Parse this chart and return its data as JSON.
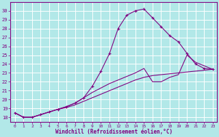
{
  "xlabel": "Windchill (Refroidissement éolien,°C)",
  "background_color": "#b2e8e8",
  "line_color": "#800080",
  "grid_color": "#ffffff",
  "ylim": [
    17.5,
    31.0
  ],
  "xlim": [
    -0.5,
    23.5
  ],
  "yticks": [
    18,
    19,
    20,
    21,
    22,
    23,
    24,
    25,
    26,
    27,
    28,
    29,
    30
  ],
  "xticks": [
    0,
    1,
    2,
    3,
    4,
    5,
    6,
    7,
    8,
    9,
    10,
    11,
    12,
    13,
    14,
    15,
    16,
    17,
    18,
    19,
    20,
    21,
    22,
    23
  ],
  "series": [
    {
      "x": [
        0,
        1,
        2,
        3,
        4,
        5,
        6,
        7,
        8,
        9,
        10,
        11,
        12,
        13,
        14,
        15,
        16,
        17,
        18,
        19,
        20,
        21,
        22,
        23
      ],
      "y": [
        18.5,
        18.0,
        18.0,
        18.3,
        18.6,
        18.9,
        19.2,
        19.6,
        20.2,
        21.5,
        23.2,
        25.2,
        28.0,
        29.5,
        30.0,
        30.2,
        29.2,
        28.2,
        27.2,
        26.5,
        25.2,
        24.0,
        23.5,
        23.4
      ],
      "marker": "+"
    },
    {
      "x": [
        0,
        1,
        2,
        3,
        4,
        5,
        6,
        7,
        8,
        9,
        10,
        11,
        12,
        13,
        14,
        15,
        16,
        17,
        18,
        19,
        20,
        21,
        22,
        23
      ],
      "y": [
        18.5,
        18.0,
        18.0,
        18.3,
        18.6,
        18.9,
        19.2,
        19.6,
        20.2,
        20.8,
        21.3,
        21.8,
        22.2,
        22.6,
        23.0,
        23.5,
        22.0,
        22.0,
        22.5,
        22.8,
        25.0,
        24.2,
        23.8,
        23.4
      ],
      "marker": null
    },
    {
      "x": [
        0,
        1,
        2,
        3,
        4,
        5,
        6,
        7,
        8,
        9,
        10,
        11,
        12,
        13,
        14,
        15,
        16,
        17,
        18,
        19,
        20,
        21,
        22,
        23
      ],
      "y": [
        18.5,
        18.0,
        18.0,
        18.3,
        18.6,
        18.9,
        19.1,
        19.4,
        19.8,
        20.2,
        20.6,
        21.0,
        21.4,
        21.8,
        22.2,
        22.5,
        22.7,
        22.8,
        22.9,
        23.0,
        23.1,
        23.2,
        23.3,
        23.4
      ],
      "marker": null
    }
  ]
}
